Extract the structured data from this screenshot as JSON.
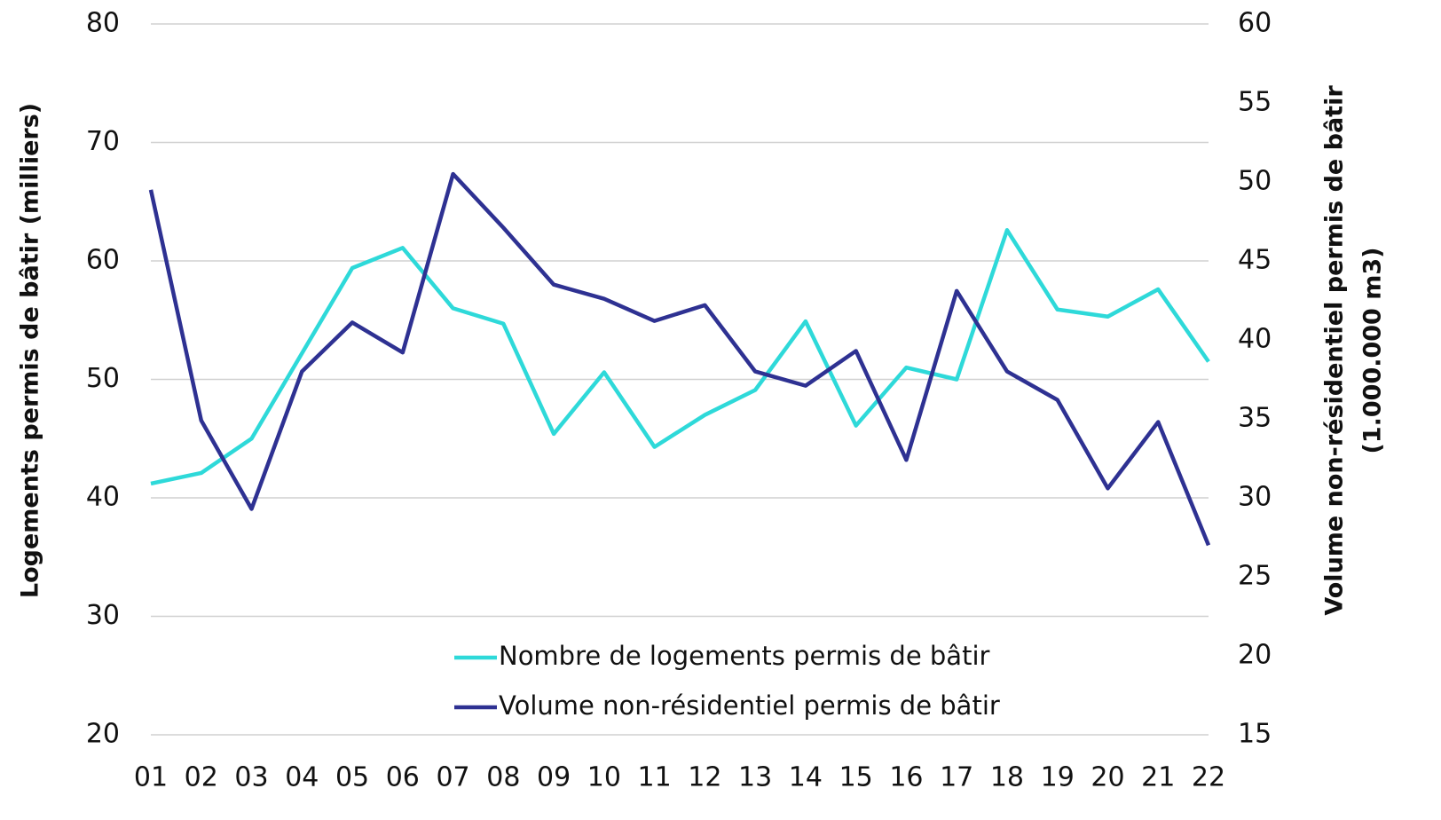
{
  "chart_data": {
    "type": "line",
    "y_label": "Logements permis de bâtir (milliers)",
    "y2_label_lines": [
      "Volume non-résidentiel  permis de bâtir",
      "(1.000.000  m3)"
    ],
    "categories": [
      "01",
      "02",
      "03",
      "04",
      "05",
      "06",
      "07",
      "08",
      "09",
      "10",
      "11",
      "12",
      "13",
      "14",
      "15",
      "16",
      "17",
      "18",
      "19",
      "20",
      "21",
      "22"
    ],
    "series": [
      {
        "name": "Nombre de logements permis de bâtir",
        "color": "#2ed9d9",
        "axis": "y",
        "values": [
          41.2,
          42.1,
          45.0,
          52.2,
          59.4,
          61.1,
          56.0,
          54.7,
          45.4,
          50.6,
          44.3,
          47.0,
          49.1,
          54.9,
          46.1,
          51.0,
          50.0,
          62.6,
          55.9,
          55.3,
          57.6,
          51.5
        ]
      },
      {
        "name": "Volume non-résidentiel permis de bâtir",
        "color": "#2e3192",
        "axis": "y2",
        "values": [
          49.5,
          34.9,
          29.3,
          38.0,
          41.1,
          39.2,
          50.5,
          47.1,
          43.5,
          42.6,
          41.2,
          42.2,
          38.0,
          37.1,
          39.3,
          32.4,
          43.1,
          38.0,
          36.2,
          30.6,
          34.8,
          27.0
        ]
      }
    ],
    "ylim": [
      20,
      80
    ],
    "yticks": [
      20,
      30,
      40,
      50,
      60,
      70,
      80
    ],
    "y2lim": [
      15,
      60
    ],
    "y2ticks": [
      15,
      20,
      25,
      30,
      35,
      40,
      45,
      50,
      55,
      60
    ],
    "grid": true
  }
}
